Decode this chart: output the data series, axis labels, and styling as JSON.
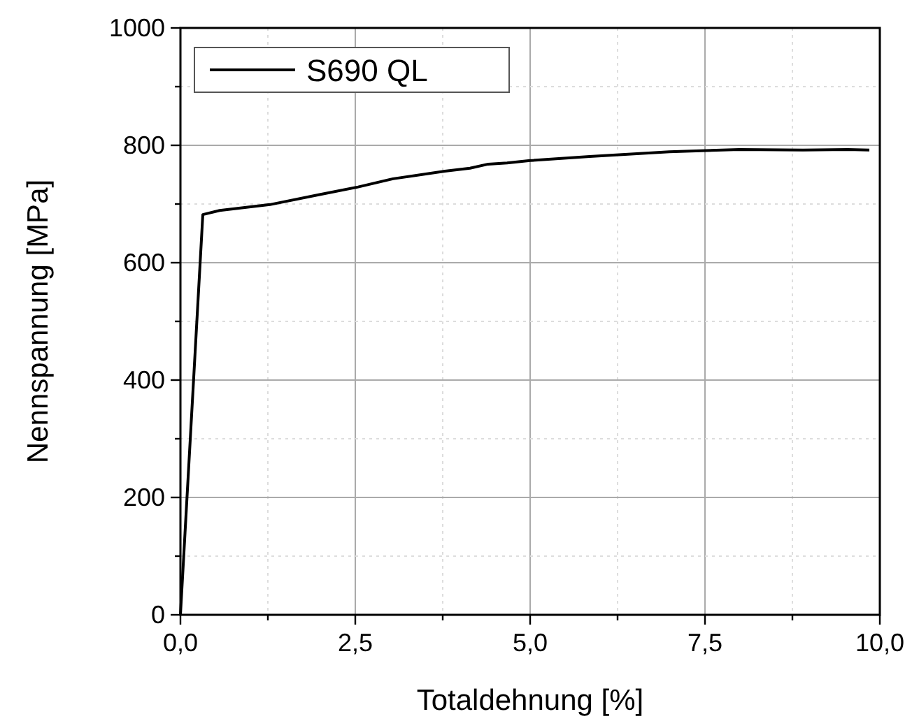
{
  "chart_data": {
    "type": "line",
    "xlabel": "Totaldehnung [%]",
    "ylabel": "Nennspannung [MPa]",
    "series": [
      {
        "name": "S690 QL",
        "color": "#000000",
        "x": [
          0,
          0.32,
          0.56,
          1.28,
          1.99,
          2.54,
          3.04,
          3.78,
          4.14,
          4.4,
          4.67,
          5.0,
          5.85,
          6.99,
          7.99,
          8.9,
          9.54,
          9.85
        ],
        "values": [
          0,
          682,
          689,
          699,
          716,
          729,
          743,
          756,
          761,
          768,
          770,
          774,
          781,
          789,
          793,
          792,
          793,
          792
        ]
      }
    ],
    "xlim": [
      0,
      10
    ],
    "ylim": [
      0,
      1000
    ],
    "xticks": [
      {
        "value": 0,
        "label": "0,0"
      },
      {
        "value": 1.25,
        "label": null
      },
      {
        "value": 2.5,
        "label": "2,5"
      },
      {
        "value": 3.75,
        "label": null
      },
      {
        "value": 5,
        "label": "5,0"
      },
      {
        "value": 6.25,
        "label": null
      },
      {
        "value": 7.5,
        "label": "7,5"
      },
      {
        "value": 8.75,
        "label": null
      },
      {
        "value": 10,
        "label": "10,0"
      }
    ],
    "yticks": [
      0,
      {
        "value": 100,
        "label": null
      },
      200,
      {
        "value": 300,
        "label": null
      },
      400,
      {
        "value": 500,
        "label": null
      },
      600,
      {
        "value": 700,
        "label": null
      },
      800,
      {
        "value": 900,
        "label": null
      },
      1000
    ],
    "grid": true,
    "legend": "top left",
    "marker": "none",
    "line_style": "solid"
  }
}
